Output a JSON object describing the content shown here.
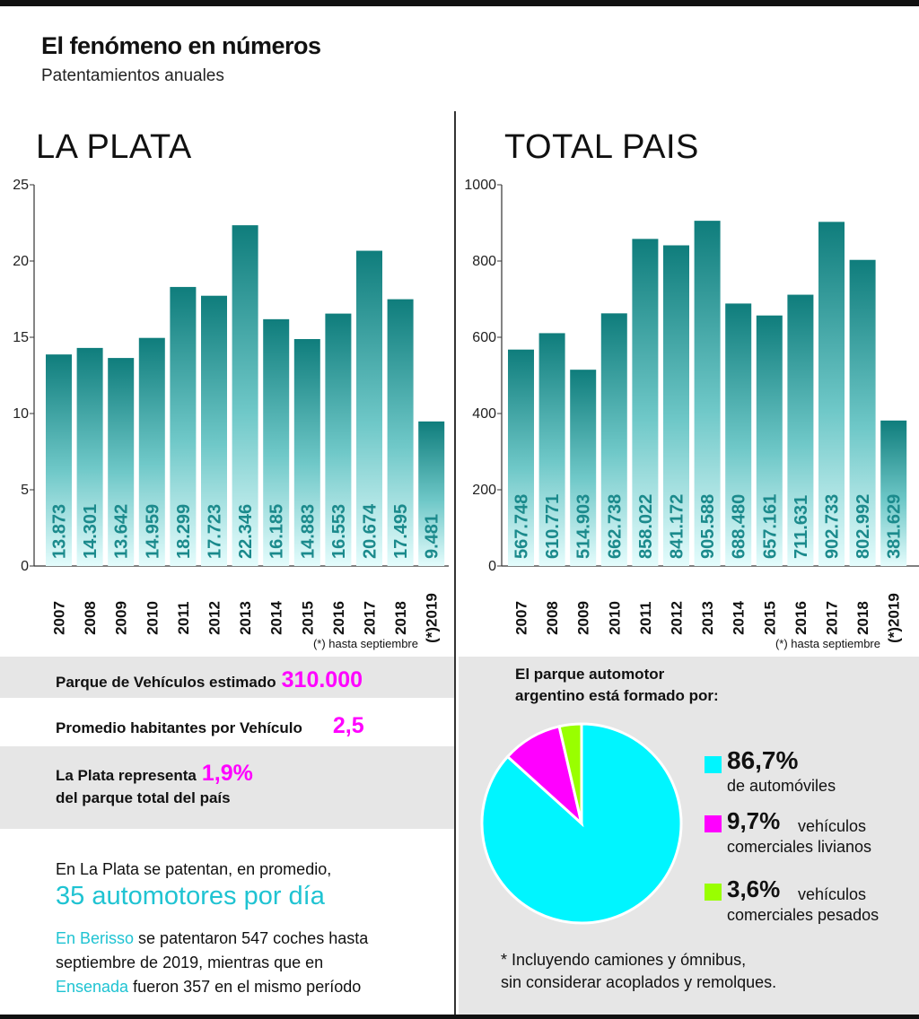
{
  "header": {
    "title": "El fenómeno en números",
    "subtitle": "Patentamientos anuales"
  },
  "colors": {
    "bar_top": "#0f7d7c",
    "bar_bottom": "#e4fcfc",
    "value_label": "#1b8a8c",
    "accent_magenta": "#ff00ff",
    "accent_cyan": "#1fc3d2",
    "pie_automoviles": "#00f5ff",
    "pie_livianos": "#ff00ff",
    "pie_pesados": "#99ff00"
  },
  "chart_data": [
    {
      "type": "bar",
      "title": "LA PLATA",
      "categories": [
        "2007",
        "2008",
        "2009",
        "2010",
        "2011",
        "2012",
        "2013",
        "2014",
        "2015",
        "2016",
        "2017",
        "2018",
        "(*)2019"
      ],
      "values": [
        13.873,
        14.301,
        13.642,
        14.959,
        18.299,
        17.723,
        22.346,
        16.185,
        14.883,
        16.553,
        20.674,
        17.495,
        9.481
      ],
      "value_labels": [
        "13.873",
        "14.301",
        "13.642",
        "14.959",
        "18.299",
        "17.723",
        "22.346",
        "16.185",
        "14.883",
        "16.553",
        "20.674",
        "17.495",
        "9.481"
      ],
      "ylim": [
        0,
        25
      ],
      "yticks": [
        "0",
        "5",
        "10",
        "15",
        "20",
        "25"
      ],
      "footnote": "(*) hasta septiembre"
    },
    {
      "type": "bar",
      "title": "TOTAL PAIS",
      "categories": [
        "2007",
        "2008",
        "2009",
        "2010",
        "2011",
        "2012",
        "2013",
        "2014",
        "2015",
        "2016",
        "2017",
        "2018",
        "(*)2019"
      ],
      "values": [
        567.748,
        610.771,
        514.903,
        662.738,
        858.022,
        841.172,
        905.588,
        688.48,
        657.161,
        711.631,
        902.733,
        802.992,
        381.629
      ],
      "value_labels": [
        "567.748",
        "610.771",
        "514.903",
        "662.738",
        "858.022",
        "841.172",
        "905.588",
        "688.480",
        "657.161",
        "711.631",
        "902.733",
        "802.992",
        "381.629"
      ],
      "ylim": [
        0,
        1000
      ],
      "yticks": [
        "0",
        "200",
        "400",
        "600",
        "800",
        "1000"
      ],
      "footnote": "(*) hasta septiembre"
    },
    {
      "type": "pie",
      "title": "El parque automotor argentino está formado por:",
      "slices": [
        {
          "label": "de automóviles",
          "value": 86.7
        },
        {
          "label": "vehículos comerciales livianos",
          "value": 9.7
        },
        {
          "label": "vehículos comerciales pesados",
          "value": 3.6
        }
      ]
    }
  ],
  "stats": {
    "parque_label": "Parque de Vehículos estimado",
    "parque_value": "310.000",
    "promedio_label": "Promedio habitantes por Vehículo",
    "promedio_value": "2,5",
    "representa_pre": "La Plata representa",
    "representa_value": "1,9%",
    "representa_post": "del parque total del país"
  },
  "text_block": {
    "line1": "En La Plata se patentan, en promedio,",
    "highlight": "35 automotores por día",
    "berisso": "En Berisso",
    "berisso_rest": " se patentaron 547 coches hasta",
    "line3": "septiembre de 2019, mientras que en",
    "ensenada": "Ensenada",
    "ensenada_rest": " fueron 357 en el mismo período"
  },
  "pie_panel": {
    "title_line1": "El parque automotor",
    "title_line2": "argentino está formado por:",
    "items": [
      {
        "pct": "86,7%",
        "text1": "",
        "text2": "de automóviles"
      },
      {
        "pct": "9,7%",
        "text1": "vehículos",
        "text2": "comerciales livianos"
      },
      {
        "pct": "3,6%",
        "text1": "vehículos",
        "text2": "comerciales pesados"
      }
    ],
    "note_line1": "* Incluyendo camiones y ómnibus,",
    "note_line2": "sin considerar acoplados y remolques."
  }
}
